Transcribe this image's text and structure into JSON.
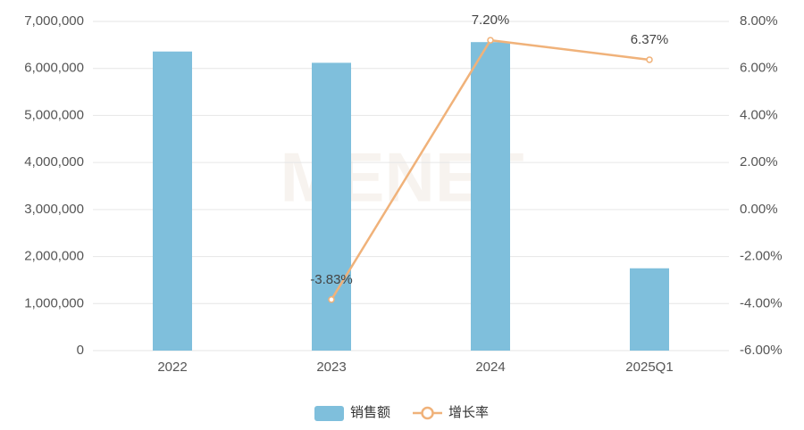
{
  "chart_data": {
    "type": "bar-line",
    "watermark": "MENET",
    "categories": [
      "2022",
      "2023",
      "2024",
      "2025Q1"
    ],
    "series": [
      {
        "name": "销售额",
        "color": "#7fbfdc",
        "type": "bar",
        "axis": "y",
        "values": [
          6360000,
          6120000,
          6560000,
          1750000
        ]
      },
      {
        "name": "增长率",
        "color": "#f0b27a",
        "type": "line",
        "axis": "y2",
        "values": [
          null,
          -3.83,
          7.2,
          6.37
        ],
        "value_labels": [
          null,
          "-3.83%",
          "7.20%",
          "6.37%"
        ]
      }
    ],
    "ylim": [
      0,
      7000000
    ],
    "yticks": [
      0,
      {
        "value": 1000000,
        "label": "1,000,000"
      },
      {
        "value": 2000000,
        "label": "2,000,000"
      },
      {
        "value": 3000000,
        "label": "3,000,000"
      },
      {
        "value": 4000000,
        "label": "4,000,000"
      },
      {
        "value": 5000000,
        "label": "5,000,000"
      },
      {
        "value": 6000000,
        "label": "6,000,000"
      },
      {
        "value": 7000000,
        "label": "7,000,000"
      }
    ],
    "y2lim": [
      -6,
      8
    ],
    "y2ticks": [
      {
        "value": -6,
        "label": "-6.00%"
      },
      {
        "value": -4,
        "label": "-4.00%"
      },
      {
        "value": -2,
        "label": "-2.00%"
      },
      {
        "value": 0,
        "label": "0.00%"
      },
      {
        "value": 2,
        "label": "2.00%"
      },
      {
        "value": 4,
        "label": "4.00%"
      },
      {
        "value": 6,
        "label": "6.00%"
      },
      {
        "value": 8,
        "label": "8.00%"
      }
    ],
    "grid": true,
    "legend": "bottom"
  }
}
